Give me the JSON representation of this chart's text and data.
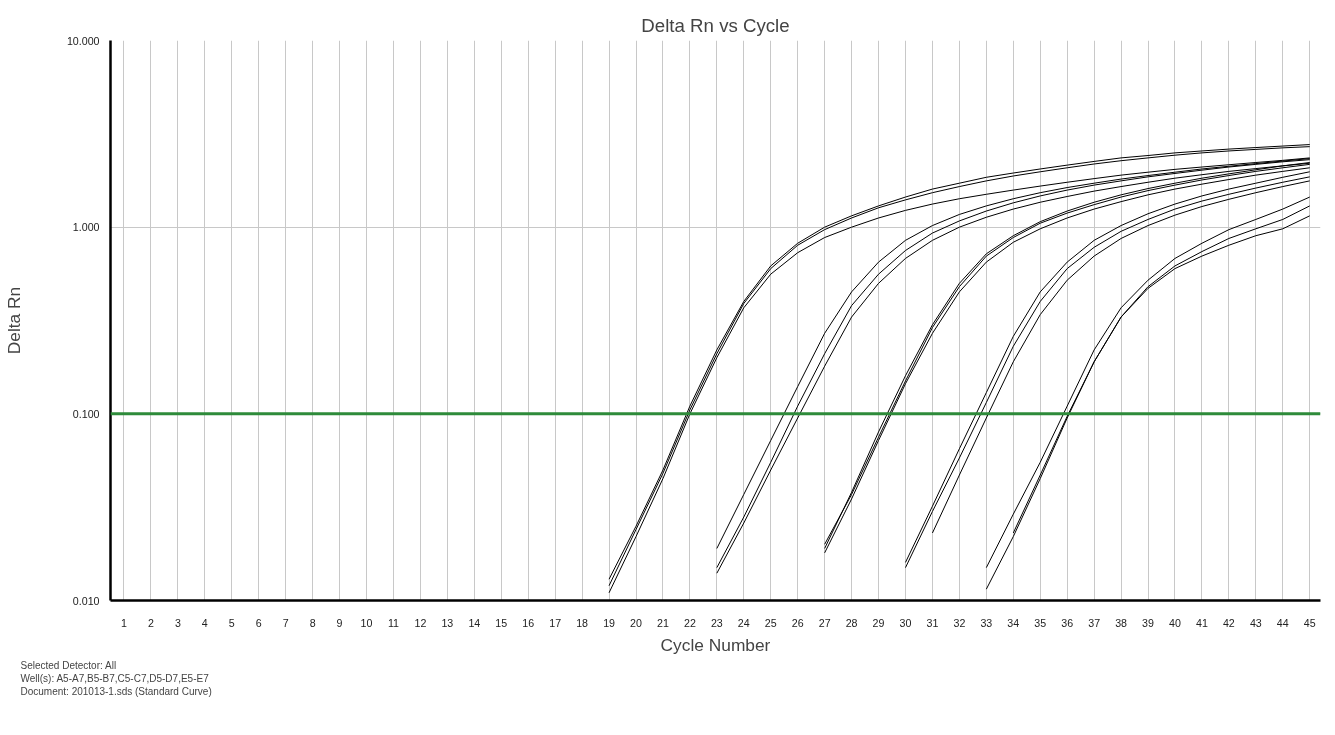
{
  "chart_data": {
    "type": "line",
    "title": "Delta Rn vs Cycle",
    "xlabel": "Cycle Number",
    "ylabel": "Delta Rn",
    "log": "y",
    "grid": true,
    "marker": "none",
    "line_style": "solid",
    "xlim": [
      0.5,
      45.4
    ],
    "xticks": [
      1,
      2,
      3,
      4,
      5,
      6,
      7,
      8,
      9,
      10,
      11,
      12,
      13,
      14,
      15,
      16,
      17,
      18,
      19,
      20,
      21,
      22,
      23,
      24,
      25,
      26,
      27,
      28,
      29,
      30,
      31,
      32,
      33,
      34,
      35,
      36,
      37,
      38,
      39,
      40,
      41,
      42,
      43,
      44,
      45
    ],
    "ylim": [
      0.01,
      10
    ],
    "yticks": [
      {
        "value": 0.01,
        "label": "0.010"
      },
      {
        "value": 0.1,
        "label": "0.100"
      },
      {
        "value": 1,
        "label": "1.000"
      },
      {
        "value": 10,
        "label": "10.000"
      }
    ],
    "ref_lines": [
      {
        "axis": "y",
        "value": 0.1,
        "label": null,
        "color": "#2e8b3a"
      }
    ],
    "annotations": [
      "Selected Detector: All",
      "Well(s): A5-A7,B5-B7,C5-C7,D5-D7,E5-E7",
      "Document: 201013-1.sds (Standard Curve)"
    ],
    "series": [
      {
        "color": "#000000",
        "x": [
          19,
          20,
          21,
          22,
          23,
          24,
          25,
          26,
          27,
          28,
          29,
          30,
          31,
          32,
          33,
          34,
          35,
          36,
          37,
          38,
          39,
          40,
          41,
          42,
          43,
          44,
          45
        ],
        "values": [
          0.013,
          0.025,
          0.05,
          0.11,
          0.22,
          0.4,
          0.62,
          0.82,
          1.0,
          1.15,
          1.3,
          1.45,
          1.6,
          1.72,
          1.85,
          1.95,
          2.05,
          2.15,
          2.25,
          2.35,
          2.42,
          2.5,
          2.56,
          2.62,
          2.67,
          2.72,
          2.77
        ]
      },
      {
        "color": "#000000",
        "x": [
          19,
          20,
          21,
          22,
          23,
          24,
          25,
          26,
          27,
          28,
          29,
          30,
          31,
          32,
          33,
          34,
          35,
          36,
          37,
          38,
          39,
          40,
          41,
          42,
          43,
          44,
          45
        ],
        "values": [
          0.012,
          0.024,
          0.048,
          0.105,
          0.21,
          0.39,
          0.6,
          0.8,
          0.97,
          1.12,
          1.27,
          1.4,
          1.53,
          1.65,
          1.77,
          1.88,
          1.98,
          2.08,
          2.18,
          2.27,
          2.35,
          2.43,
          2.5,
          2.56,
          2.61,
          2.66,
          2.7
        ]
      },
      {
        "color": "#000000",
        "x": [
          19,
          20,
          21,
          22,
          23,
          24,
          25,
          26,
          27,
          28,
          29,
          30,
          31,
          32,
          33,
          34,
          35,
          36,
          37,
          38,
          39,
          40,
          41,
          42,
          43,
          44,
          45
        ],
        "values": [
          0.011,
          0.022,
          0.045,
          0.1,
          0.2,
          0.37,
          0.56,
          0.73,
          0.88,
          1.0,
          1.12,
          1.23,
          1.33,
          1.42,
          1.5,
          1.58,
          1.66,
          1.74,
          1.82,
          1.9,
          1.97,
          2.04,
          2.1,
          2.16,
          2.22,
          2.28,
          2.35
        ]
      },
      {
        "color": "#000000",
        "x": [
          23,
          24,
          25,
          26,
          27,
          28,
          29,
          30,
          31,
          32,
          33,
          34,
          35,
          36,
          37,
          38,
          39,
          40,
          41,
          42,
          43,
          44,
          45
        ],
        "values": [
          0.019,
          0.037,
          0.072,
          0.14,
          0.27,
          0.45,
          0.65,
          0.85,
          1.02,
          1.17,
          1.3,
          1.42,
          1.53,
          1.63,
          1.72,
          1.81,
          1.89,
          1.97,
          2.05,
          2.12,
          2.19,
          2.26,
          2.33
        ]
      },
      {
        "color": "#000000",
        "x": [
          23,
          24,
          25,
          26,
          27,
          28,
          29,
          30,
          31,
          32,
          33,
          34,
          35,
          36,
          37,
          38,
          39,
          40,
          41,
          42,
          43,
          44,
          45
        ],
        "values": [
          0.015,
          0.028,
          0.055,
          0.11,
          0.21,
          0.38,
          0.56,
          0.75,
          0.93,
          1.08,
          1.22,
          1.35,
          1.47,
          1.58,
          1.68,
          1.77,
          1.86,
          1.94,
          2.02,
          2.1,
          2.17,
          2.24,
          2.3
        ]
      },
      {
        "color": "#000000",
        "x": [
          23,
          24,
          25,
          26,
          27,
          28,
          29,
          30,
          31,
          32,
          33,
          34,
          35,
          36,
          37,
          38,
          39,
          40,
          41,
          42,
          43,
          44,
          45
        ],
        "values": [
          0.014,
          0.026,
          0.05,
          0.095,
          0.18,
          0.33,
          0.5,
          0.68,
          0.85,
          1.0,
          1.13,
          1.25,
          1.36,
          1.46,
          1.56,
          1.65,
          1.74,
          1.83,
          1.91,
          1.99,
          2.06,
          2.13,
          2.2
        ]
      },
      {
        "color": "#000000",
        "x": [
          27,
          28,
          29,
          30,
          31,
          32,
          33,
          34,
          35,
          36,
          37,
          38,
          39,
          40,
          41,
          42,
          43,
          44,
          45
        ],
        "values": [
          0.019,
          0.038,
          0.08,
          0.16,
          0.3,
          0.5,
          0.72,
          0.9,
          1.07,
          1.22,
          1.36,
          1.49,
          1.61,
          1.72,
          1.83,
          1.93,
          2.03,
          2.13,
          2.22
        ]
      },
      {
        "color": "#000000",
        "x": [
          27,
          28,
          29,
          30,
          31,
          32,
          33,
          34,
          35,
          36,
          37,
          38,
          39,
          40,
          41,
          42,
          43,
          44,
          45
        ],
        "values": [
          0.02,
          0.037,
          0.075,
          0.15,
          0.29,
          0.48,
          0.7,
          0.88,
          1.05,
          1.19,
          1.32,
          1.45,
          1.57,
          1.68,
          1.79,
          1.89,
          1.99,
          2.08,
          2.17
        ]
      },
      {
        "color": "#000000",
        "x": [
          27,
          28,
          29,
          30,
          31,
          32,
          33,
          34,
          35,
          36,
          37,
          38,
          39,
          40,
          41,
          42,
          43,
          44,
          45
        ],
        "values": [
          0.018,
          0.035,
          0.072,
          0.145,
          0.27,
          0.45,
          0.65,
          0.83,
          0.98,
          1.12,
          1.25,
          1.37,
          1.49,
          1.6,
          1.7,
          1.8,
          1.9,
          1.99,
          2.08
        ]
      },
      {
        "color": "#000000",
        "x": [
          30,
          31,
          32,
          33,
          34,
          35,
          36,
          37,
          38,
          39,
          40,
          41,
          42,
          43,
          44,
          45
        ],
        "values": [
          0.016,
          0.032,
          0.065,
          0.13,
          0.26,
          0.45,
          0.65,
          0.85,
          1.02,
          1.18,
          1.33,
          1.47,
          1.6,
          1.72,
          1.85,
          1.98
        ]
      },
      {
        "color": "#000000",
        "x": [
          30,
          31,
          32,
          33,
          34,
          35,
          36,
          37,
          38,
          39,
          40,
          41,
          42,
          43,
          44,
          45
        ],
        "values": [
          0.015,
          0.03,
          0.058,
          0.115,
          0.23,
          0.4,
          0.6,
          0.78,
          0.95,
          1.1,
          1.25,
          1.38,
          1.5,
          1.62,
          1.74,
          1.86
        ]
      },
      {
        "color": "#000000",
        "x": [
          31,
          32,
          33,
          34,
          35,
          36,
          37,
          38,
          39,
          40,
          41,
          42,
          43,
          44,
          45
        ],
        "values": [
          0.023,
          0.047,
          0.095,
          0.19,
          0.34,
          0.52,
          0.7,
          0.87,
          1.02,
          1.16,
          1.29,
          1.41,
          1.53,
          1.65,
          1.77
        ]
      },
      {
        "color": "#000000",
        "x": [
          33,
          34,
          35,
          36,
          37,
          38,
          39,
          40,
          41,
          42,
          43,
          44,
          45
        ],
        "values": [
          0.015,
          0.029,
          0.055,
          0.11,
          0.22,
          0.37,
          0.52,
          0.68,
          0.82,
          0.97,
          1.1,
          1.25,
          1.45
        ]
      },
      {
        "color": "#000000",
        "x": [
          33,
          34,
          35,
          36,
          37,
          38,
          39,
          40,
          41,
          42,
          43,
          44,
          45
        ],
        "values": [
          0.0115,
          0.022,
          0.045,
          0.095,
          0.19,
          0.33,
          0.48,
          0.62,
          0.74,
          0.87,
          0.98,
          1.1,
          1.3
        ]
      },
      {
        "color": "#000000",
        "x": [
          34,
          35,
          36,
          37,
          38,
          39,
          40,
          41,
          42,
          43,
          44,
          45
        ],
        "values": [
          0.023,
          0.047,
          0.097,
          0.19,
          0.33,
          0.47,
          0.6,
          0.7,
          0.8,
          0.9,
          0.98,
          1.15
        ]
      }
    ]
  }
}
